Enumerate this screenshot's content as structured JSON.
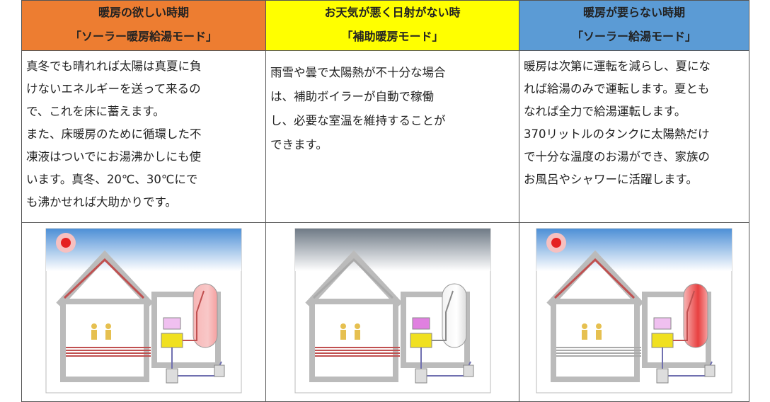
{
  "table": {
    "headers": [
      {
        "line1": "暖房の欲しい時期",
        "line2": "「ソーラー暖房給湯モード」"
      },
      {
        "line1": "お天気が悪く日射がない時",
        "line2": "「補助暖房モード」"
      },
      {
        "line1": "暖房が要らない時期",
        "line2": "「ソーラー給湯モード」"
      }
    ],
    "body": [
      [
        "真冬でも晴れれば太陽は真夏に負",
        "けないエネルギーを送って来るの",
        "で、これを床に蓄えます。",
        "また、床暖房のために循環した不",
        "凍液はついでにお湯沸かしにも使",
        "います。真冬、20℃、30℃にで",
        "も沸かせれば大助かりです。"
      ],
      [
        "雨雪や曇で太陽熱が不十分な場合",
        "は、補助ボイラーが自動で稼働",
        "し、必要な室温を維持することが",
        "できます。"
      ],
      [
        "暖房は次第に運転を減らし、夏にな",
        "れば給湯のみで運転します。夏とも",
        "なれば全力で給湯運転します。",
        "370リットルのタンクに太陽熱だけ",
        "で十分な温度のお湯ができ、家族の",
        "お風呂やシャワーに活躍します。"
      ]
    ]
  }
}
